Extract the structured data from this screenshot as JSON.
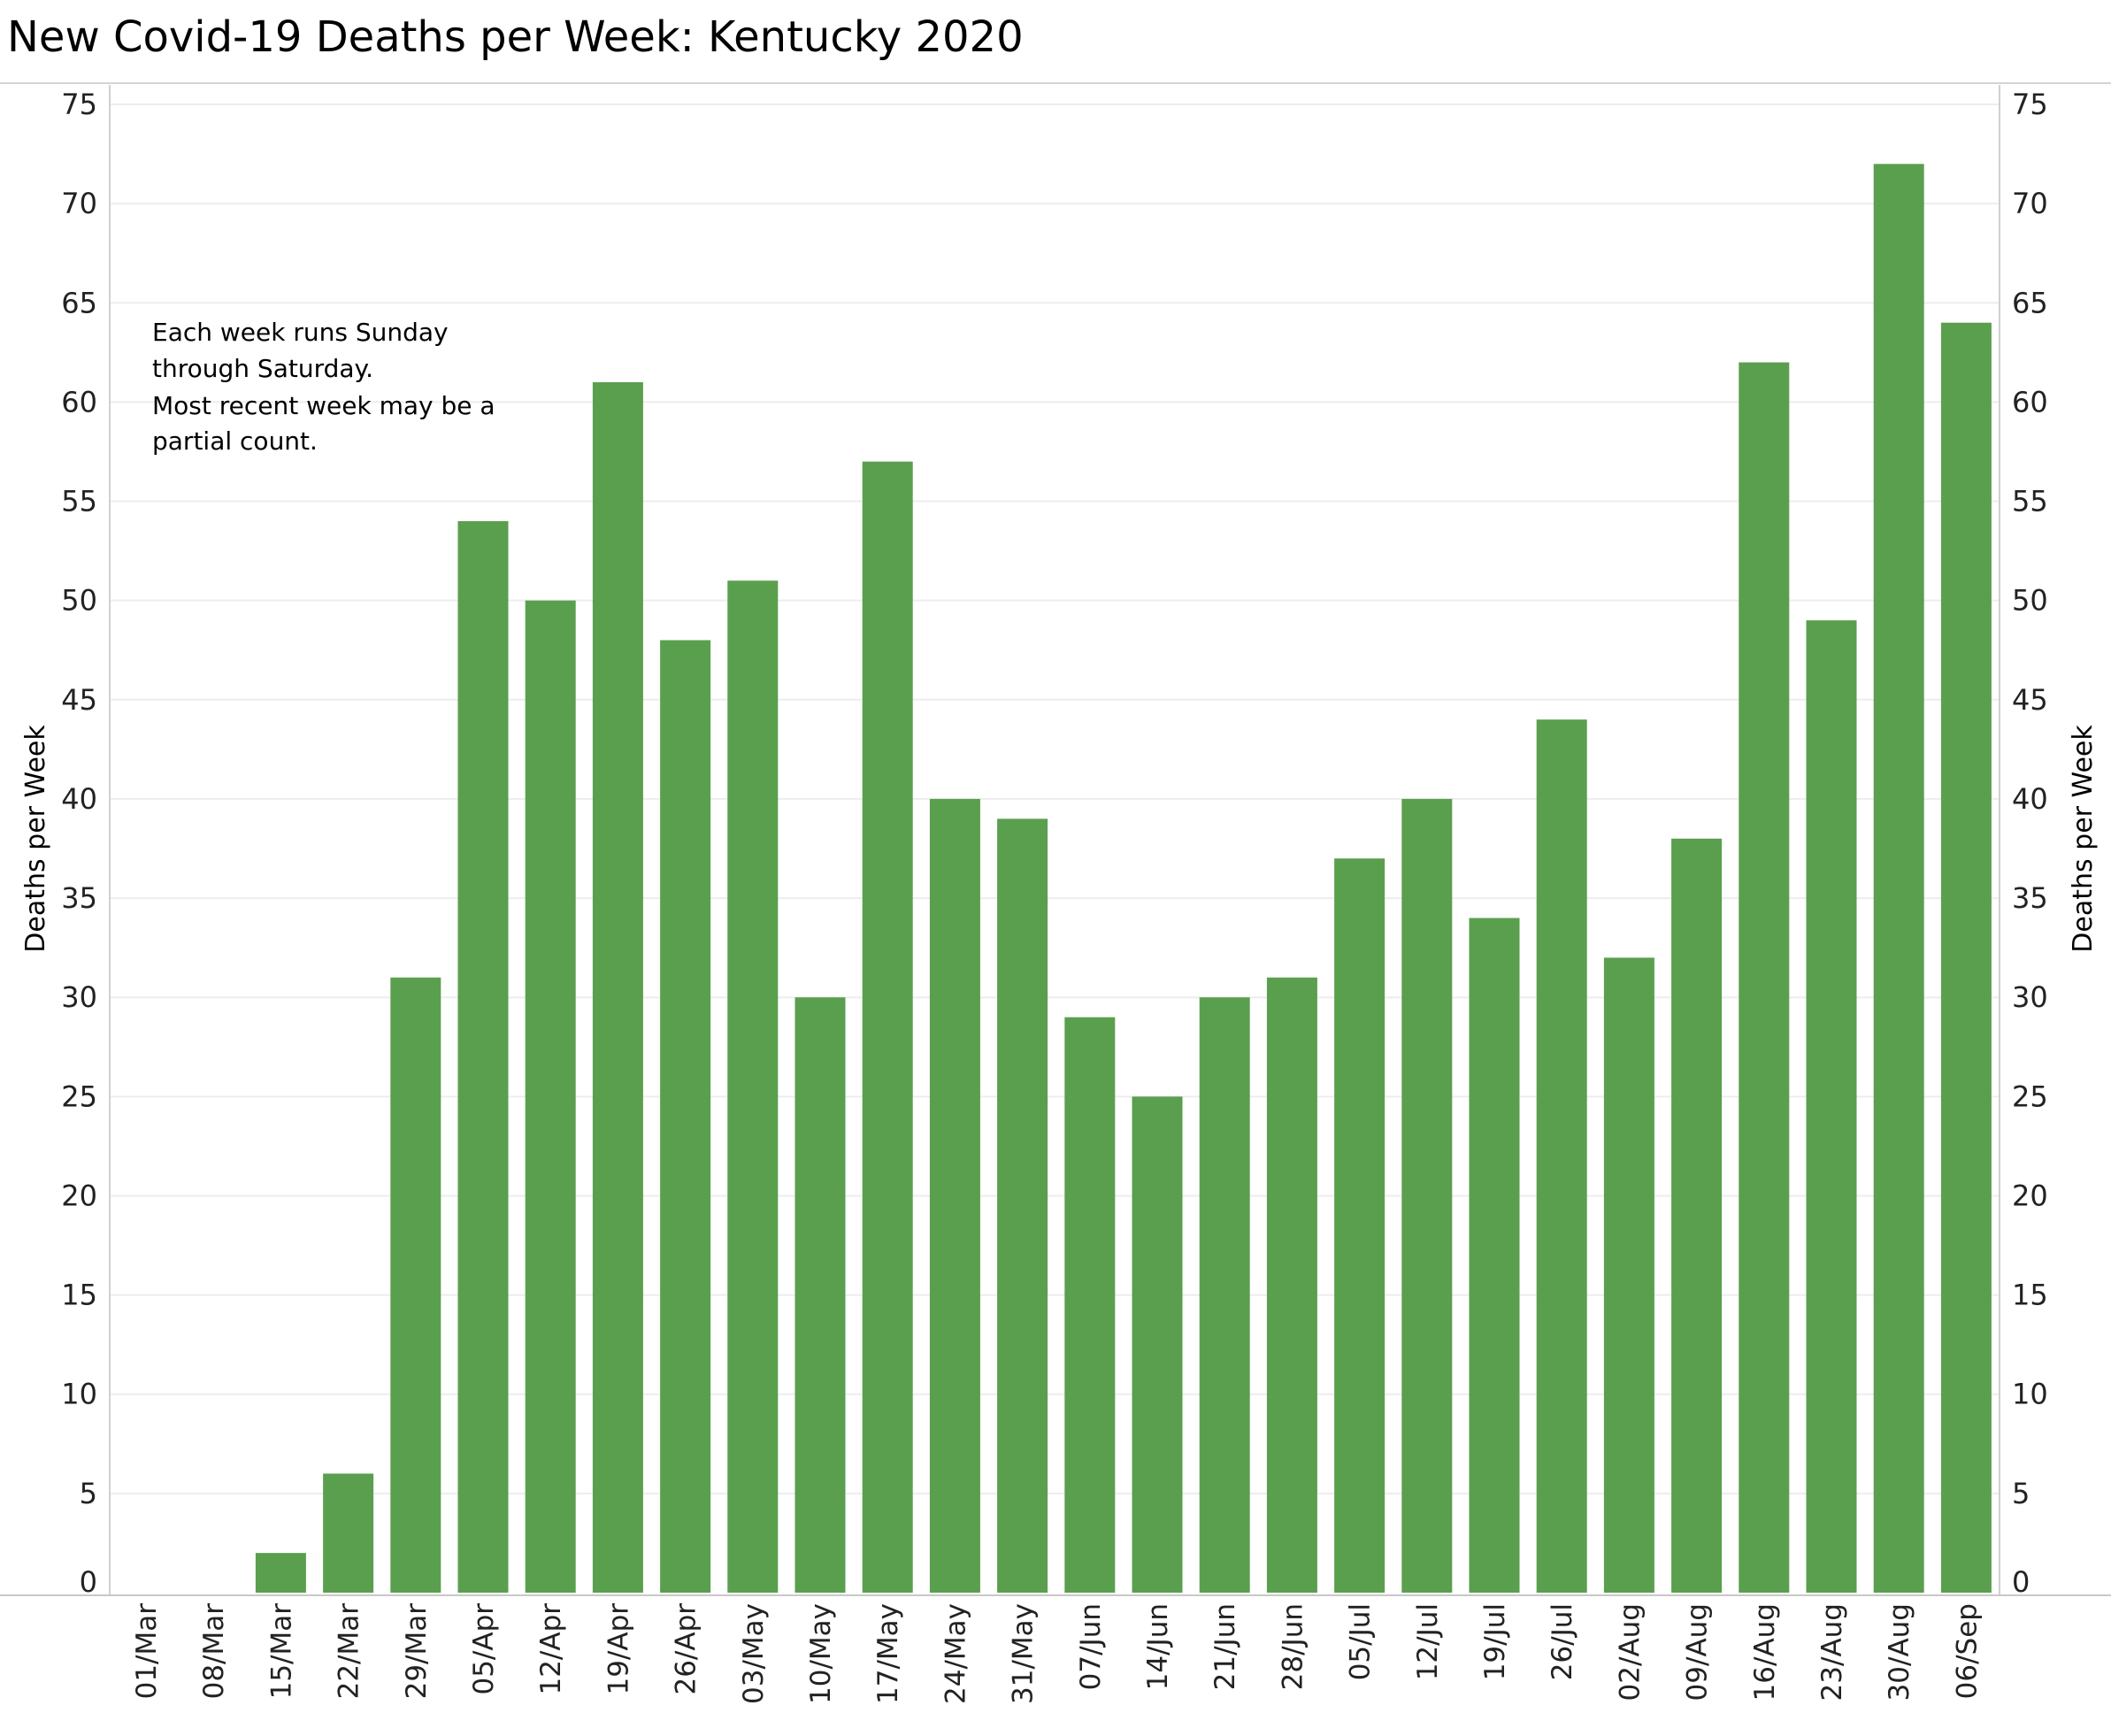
{
  "chart_data": {
    "type": "bar",
    "title": "New Covid-19 Deaths per Week:  Kentucky 2020",
    "ylabel": "Deaths per Week",
    "ylabel_right": "Deaths per Week",
    "xlabel": "",
    "ylim": [
      0,
      75
    ],
    "yticks": [
      "0",
      "5",
      "10",
      "15",
      "20",
      "25",
      "30",
      "35",
      "40",
      "45",
      "50",
      "55",
      "60",
      "65",
      "70",
      "75"
    ],
    "categories": [
      "01/Mar",
      "08/Mar",
      "15/Mar",
      "22/Mar",
      "29/Mar",
      "05/Apr",
      "12/Apr",
      "19/Apr",
      "26/Apr",
      "03/May",
      "10/May",
      "17/May",
      "24/May",
      "31/May",
      "07/Jun",
      "14/Jun",
      "21/Jun",
      "28/Jun",
      "05/Jul",
      "12/Jul",
      "19/Jul",
      "26/Jul",
      "02/Aug",
      "09/Aug",
      "16/Aug",
      "23/Aug",
      "30/Aug",
      "06/Sep"
    ],
    "values": [
      0,
      0,
      2,
      6,
      31,
      54,
      50,
      61,
      48,
      51,
      30,
      57,
      40,
      39,
      29,
      25,
      30,
      31,
      37,
      40,
      34,
      44,
      32,
      38,
      62,
      49,
      72,
      64
    ],
    "bar_color": "#5a9f4e",
    "grid": true,
    "annotation": [
      "Each week runs Sunday",
      "through Saturday.",
      "Most recent week may be a",
      "partial count."
    ]
  }
}
